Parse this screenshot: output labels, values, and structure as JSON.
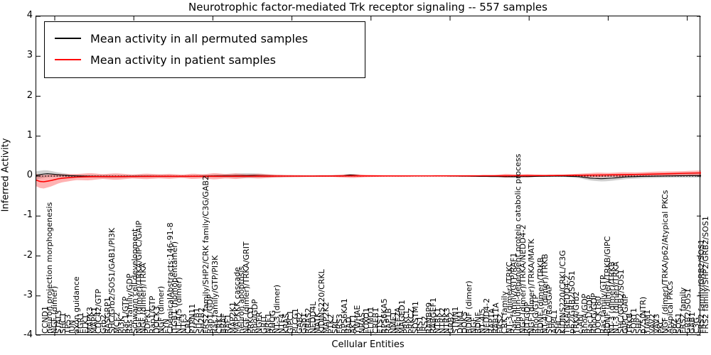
{
  "title": "Neurotrophic factor-mediated Trk receptor signaling -- 557 samples",
  "legend": {
    "items": [
      {
        "label": "Mean activity in all permuted samples",
        "color": "#000000"
      },
      {
        "label": "Mean activity in patient samples",
        "color": "#ff0000"
      }
    ]
  },
  "chart_data": {
    "type": "line",
    "title": "Neurotrophic factor-mediated Trk receptor signaling -- 557 samples",
    "xlabel": "Cellular Entities",
    "ylabel": "Inferred Activity",
    "ylim": [
      -4,
      4
    ],
    "yticks": [
      4,
      3,
      2,
      1,
      0,
      -1,
      -2,
      -3,
      -4
    ],
    "grid": false,
    "legend_position": "upper left",
    "zero_line": {
      "style": "dotted",
      "color": "#000000",
      "y": 0
    },
    "categories": [
      "CCND1",
      "neuron projection morphogenesis",
      "NGF (dimer)",
      "STAT3",
      "SHC1",
      "TP53",
      "JUN",
      "axon guidance",
      "EGR1",
      "ELK1",
      "MAPK3",
      "MAPK1",
      "CDC42/GTP",
      "Grb2",
      "RASGRP1",
      "SHC/Grb2/SOS1/GAB1/PI3K",
      "MCF2",
      "PI3K",
      "Rac1/GTP",
      "Ras family/GDP",
      "Schwann cell development",
      "NGF (dimer)/TRKA/GIPC/GAIP",
      "NGF (dimer)/TRKA",
      "PDPK1",
      "Rap1/GTP",
      "DOCK3",
      "NGF (dimer)",
      "FYN",
      "ChemicalAbstracts:146-91-8",
      "ITGB1 (homopentamer)",
      "NT-4/5 (dimer)",
      "NTF3",
      "CRK",
      "PTPN11",
      "SH2B1",
      "SH2B2",
      "FRS2 family/SHP2/CRK family/C3G/GAB2",
      "Rap1/GDP",
      "Ras family/GTP/PI3K",
      "CRKL",
      "BRAF",
      "RAF1",
      "MAP2K1",
      "MAPKKK cascade",
      "neuron apoptosis",
      "NGF (dimer)/TRKA/GRIT",
      "PRKCD",
      "Rho/GDP",
      "NGFR",
      "GRIT",
      "NRF1",
      "RHOG",
      "NT-3 (dimer)",
      "NTF4",
      "KRAS",
      "GIPC1",
      "PLCG1",
      "GAB2",
      "Gab1",
      "RRAS2",
      "NEDD4L",
      "MATK",
      "KIDINS220/CRKL",
      "MAP2K2",
      "PTK2",
      "SRC",
      "FRS3",
      "RPS6KA1",
      "BAD",
      "AKT1",
      "YWHAE",
      "NRAS",
      "FOXO1",
      "ELMO1",
      "CREB1",
      "ETS1",
      "RPS6KA5",
      "RAP1B",
      "NME1",
      "MEF2A",
      "MAGED1",
      "PRKCI",
      "PRKCZ",
      "SQSTM1",
      "IRS1",
      "IRS2",
      "RANBP9",
      "RABGEF1",
      "NTRK1",
      "NTRK2",
      "NTRK3",
      "GRB2",
      "STMN1",
      "DNM1",
      "DOK5",
      "BDNF (dimer)",
      "NGF",
      "BDNF",
      "NT-4/5",
      "NEDD4-2",
      "RAP1A",
      "RAB11A",
      "FRS2",
      "CRK family",
      "NT-3 (dimer)/TRKC",
      "Ras family/GTP/RAF1",
      "ubiquitin-dependent protein catabolic process",
      "NGF (dimer)/TRKA/NEDD4-2",
      "RIT/GDP",
      "NGF (dimer)/TRKA/MATK",
      "RhoG/GTP",
      "BDNF (dimer)/TRKB",
      "NT-4/5 (dimer)/TRKB",
      "SHC/RasGAP",
      "APPL1",
      "SHC",
      "KIDINS220/CRKL/C3G",
      "TRKA/NEDD4-2",
      "p62/GRB2/SOS1",
      "TRKA/Grb2",
      "c-Abl",
      "RhoA/GDP",
      "Rac1/GDP",
      "RhoG/GDP",
      "DOCK180",
      "Ras family/GTP",
      "BDNF (dimer)/TRKB/GIPC",
      "NT-3 (dimer)/TRKB",
      "NT-3 (dimer)/TRKA",
      "SHC/GRB2/SOS1",
      "GIPC/GAIP",
      "TRKB",
      "SORT1",
      "SHP2",
      "p75(NTR)",
      "TIAM1",
      "VAV2",
      "VAV3",
      "PKC",
      "NGF (dimer)/TRKA/p62/Atypical PKCs",
      "Atypical PKCs",
      "p62",
      "SOS1",
      "FRS2 family",
      "GRB2/SOS1",
      "GAB1",
      "C3G",
      "FRS2 family/GRB2/SOS1",
      "FRS2 family/SHP2/GRB2/SOS1"
    ],
    "series": [
      {
        "name": "Mean activity in all permuted samples",
        "color": "#000000",
        "band_color": "rgba(0,0,0,0.18)",
        "mean": [
          [
            0,
            0.02
          ],
          [
            0.01,
            0.05
          ],
          [
            0.018,
            0.06
          ],
          [
            0.03,
            0.04
          ],
          [
            0.05,
            0.01
          ],
          [
            0.08,
            -0.005
          ],
          [
            0.12,
            -0.01
          ],
          [
            0.17,
            0
          ],
          [
            0.22,
            -0.005
          ],
          [
            0.27,
            0.005
          ],
          [
            0.3,
            0.01
          ],
          [
            0.33,
            0.015
          ],
          [
            0.36,
            0
          ],
          [
            0.42,
            0
          ],
          [
            0.46,
            0.005
          ],
          [
            0.472,
            0.025
          ],
          [
            0.49,
            0.005
          ],
          [
            0.55,
            0
          ],
          [
            0.62,
            0
          ],
          [
            0.7,
            -0.012
          ],
          [
            0.72,
            -0.018
          ],
          [
            0.75,
            -0.008
          ],
          [
            0.79,
            0
          ],
          [
            0.815,
            -0.012
          ],
          [
            0.835,
            -0.055
          ],
          [
            0.85,
            -0.065
          ],
          [
            0.868,
            -0.05
          ],
          [
            0.885,
            -0.022
          ],
          [
            0.91,
            -0.008
          ],
          [
            0.94,
            0
          ],
          [
            0.97,
            0.008
          ],
          [
            1,
            0.012
          ]
        ],
        "band_half": [
          [
            0,
            0.1
          ],
          [
            0.012,
            0.095
          ],
          [
            0.03,
            0.06
          ],
          [
            0.05,
            0.04
          ],
          [
            0.08,
            0.03
          ],
          [
            0.11,
            0.04
          ],
          [
            0.14,
            0.03
          ],
          [
            0.18,
            0.032
          ],
          [
            0.22,
            0.026
          ],
          [
            0.26,
            0.03
          ],
          [
            0.295,
            0.05
          ],
          [
            0.315,
            0.062
          ],
          [
            0.335,
            0.05
          ],
          [
            0.36,
            0.03
          ],
          [
            0.4,
            0.02
          ],
          [
            0.44,
            0.018
          ],
          [
            0.47,
            0.025
          ],
          [
            0.5,
            0.012
          ],
          [
            0.56,
            0.01
          ],
          [
            0.63,
            0.01
          ],
          [
            0.7,
            0.02
          ],
          [
            0.73,
            0.016
          ],
          [
            0.78,
            0.012
          ],
          [
            0.81,
            0.03
          ],
          [
            0.835,
            0.06
          ],
          [
            0.855,
            0.072
          ],
          [
            0.875,
            0.06
          ],
          [
            0.9,
            0.05
          ],
          [
            0.93,
            0.042
          ],
          [
            0.96,
            0.042
          ],
          [
            1,
            0.05
          ]
        ]
      },
      {
        "name": "Mean activity in patient samples",
        "color": "#ff0000",
        "band_color": "rgba(255,0,0,0.30)",
        "mean": [
          [
            0,
            -0.1
          ],
          [
            0.008,
            -0.15
          ],
          [
            0.02,
            -0.12
          ],
          [
            0.035,
            -0.06
          ],
          [
            0.06,
            -0.025
          ],
          [
            0.09,
            -0.012
          ],
          [
            0.13,
            -0.012
          ],
          [
            0.18,
            -0.006
          ],
          [
            0.24,
            -0.006
          ],
          [
            0.3,
            -0.004
          ],
          [
            0.36,
            0
          ],
          [
            0.42,
            0
          ],
          [
            0.48,
            0.003
          ],
          [
            0.55,
            0.004
          ],
          [
            0.62,
            0.005
          ],
          [
            0.7,
            0.008
          ],
          [
            0.76,
            0.012
          ],
          [
            0.82,
            0.022
          ],
          [
            0.86,
            0.03
          ],
          [
            0.9,
            0.04
          ],
          [
            0.94,
            0.055
          ],
          [
            0.97,
            0.068
          ],
          [
            1,
            0.08
          ]
        ],
        "band_half": [
          [
            0,
            0.155
          ],
          [
            0.01,
            0.17
          ],
          [
            0.022,
            0.15
          ],
          [
            0.04,
            0.1
          ],
          [
            0.06,
            0.075
          ],
          [
            0.08,
            0.09
          ],
          [
            0.1,
            0.06
          ],
          [
            0.12,
            0.082
          ],
          [
            0.145,
            0.05
          ],
          [
            0.165,
            0.07
          ],
          [
            0.185,
            0.05
          ],
          [
            0.2,
            0.062
          ],
          [
            0.22,
            0.04
          ],
          [
            0.235,
            0.068
          ],
          [
            0.252,
            0.05
          ],
          [
            0.268,
            0.08
          ],
          [
            0.285,
            0.052
          ],
          [
            0.3,
            0.07
          ],
          [
            0.318,
            0.042
          ],
          [
            0.335,
            0.06
          ],
          [
            0.355,
            0.04
          ],
          [
            0.375,
            0.028
          ],
          [
            0.41,
            0.02
          ],
          [
            0.445,
            0.022
          ],
          [
            0.465,
            0.042
          ],
          [
            0.478,
            0.05
          ],
          [
            0.495,
            0.03
          ],
          [
            0.525,
            0.016
          ],
          [
            0.58,
            0.012
          ],
          [
            0.64,
            0.012
          ],
          [
            0.69,
            0.016
          ],
          [
            0.707,
            0.05
          ],
          [
            0.722,
            0.03
          ],
          [
            0.74,
            0.042
          ],
          [
            0.758,
            0.02
          ],
          [
            0.79,
            0.016
          ],
          [
            0.82,
            0.042
          ],
          [
            0.845,
            0.06
          ],
          [
            0.862,
            0.05
          ],
          [
            0.88,
            0.06
          ],
          [
            0.905,
            0.05
          ],
          [
            0.935,
            0.06
          ],
          [
            0.965,
            0.052
          ],
          [
            1,
            0.062
          ]
        ]
      }
    ]
  }
}
